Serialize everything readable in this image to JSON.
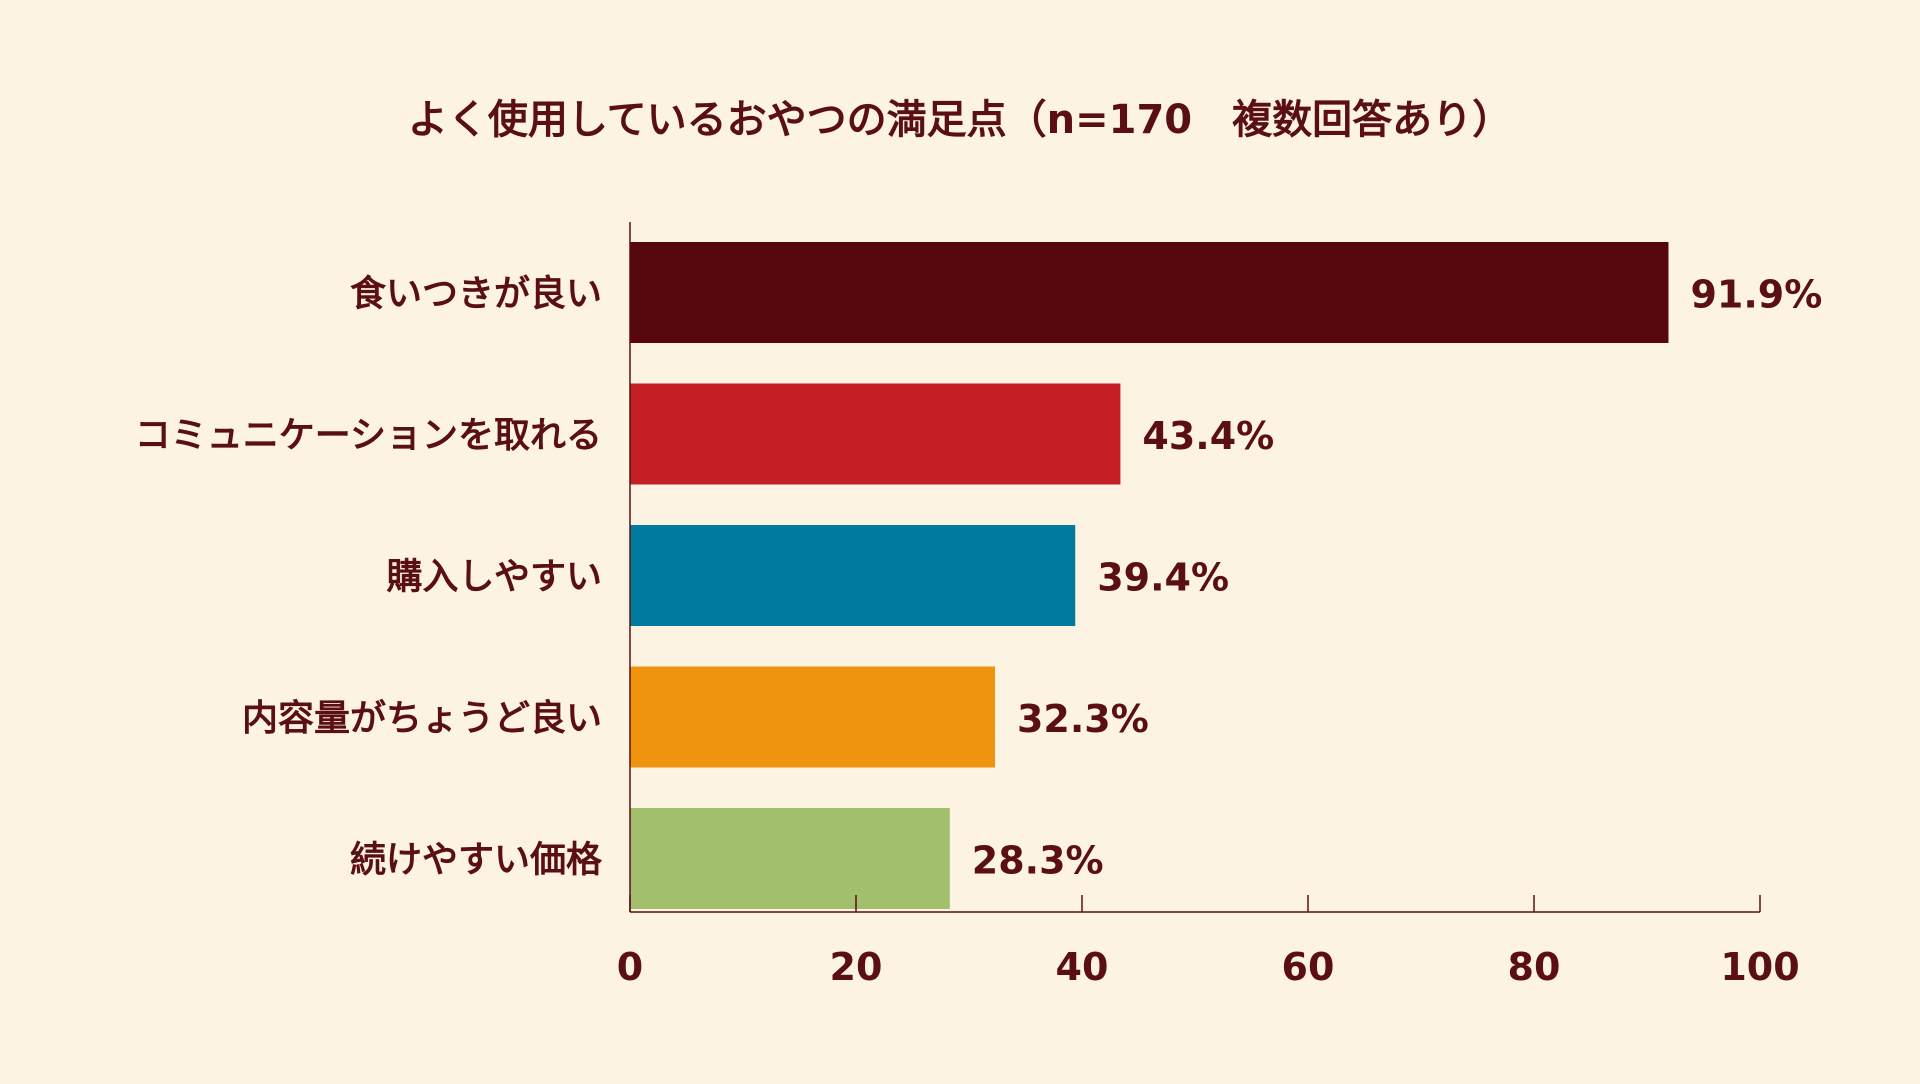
{
  "chart_data": {
    "type": "bar",
    "orientation": "horizontal",
    "title": "よく使用しているおやつの満足点（n=170　複数回答あり）",
    "categories": [
      "食いつきが良い",
      "コミュニケーションを取れる",
      "購入しやすい",
      "内容量がちょうど良い",
      "続けやすい価格"
    ],
    "values": [
      91.9,
      43.4,
      39.4,
      32.3,
      28.3
    ],
    "value_labels": [
      "91.9%",
      "43.4%",
      "39.4%",
      "32.3%",
      "28.3%"
    ],
    "colors": [
      "#56060e",
      "#c41f25",
      "#007b9d",
      "#f0930f",
      "#a1bf6c"
    ],
    "xlim": [
      0,
      100
    ],
    "xticks": [
      "0",
      "20",
      "40",
      "60",
      "80",
      "100"
    ],
    "grid": false,
    "legend": "none"
  },
  "style": {
    "background": "#fdf3e3",
    "text_color": "#5a0f14",
    "axis_color": "#5a0f14"
  }
}
